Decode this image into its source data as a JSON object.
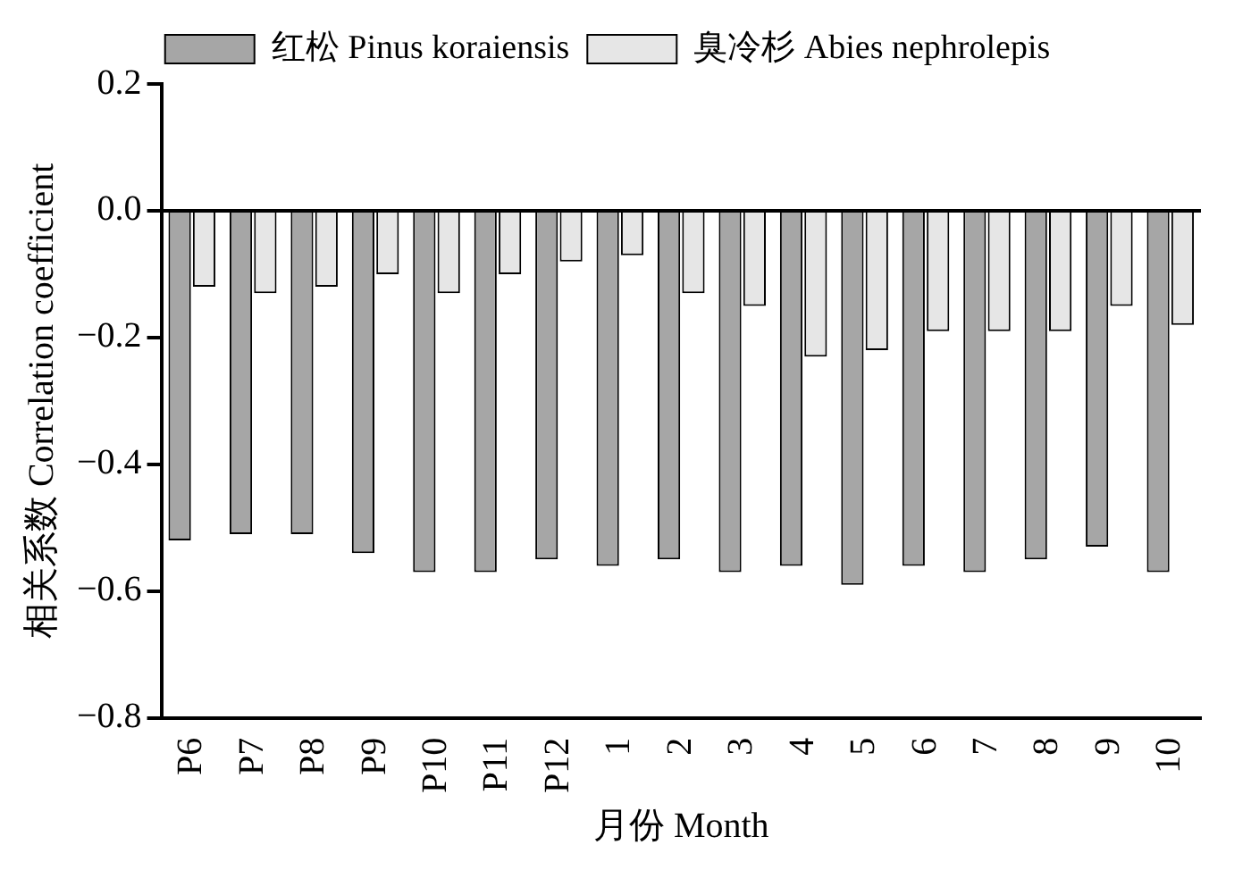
{
  "chart_data": {
    "type": "bar",
    "xlabel": "月份 Month",
    "ylabel": "相关系数 Correlation coefficient",
    "categories": [
      "P6",
      "P7",
      "P8",
      "P9",
      "P10",
      "P11",
      "P12",
      "1",
      "2",
      "3",
      "4",
      "5",
      "6",
      "7",
      "8",
      "9",
      "10"
    ],
    "series": [
      {
        "name": "红松 Pinus koraiensis",
        "color": "#a6a6a6",
        "values": [
          -0.52,
          -0.51,
          -0.51,
          -0.54,
          -0.57,
          -0.57,
          -0.55,
          -0.56,
          -0.55,
          -0.57,
          -0.56,
          -0.59,
          -0.56,
          -0.57,
          -0.55,
          -0.53,
          -0.57
        ]
      },
      {
        "name": "臭冷杉 Abies nephrolepis",
        "color": "#e6e6e6",
        "values": [
          -0.12,
          -0.13,
          -0.12,
          -0.1,
          -0.13,
          -0.1,
          -0.08,
          -0.07,
          -0.13,
          -0.15,
          -0.23,
          -0.22,
          -0.19,
          -0.19,
          -0.19,
          -0.15,
          -0.18
        ]
      }
    ],
    "ylim": [
      -0.8,
      0.2
    ],
    "yticks": [
      {
        "value": -0.8,
        "label": "−0.8"
      },
      {
        "value": -0.6,
        "label": "−0.6"
      },
      {
        "value": -0.4,
        "label": "−0.4"
      },
      {
        "value": -0.2,
        "label": "−0.2"
      },
      {
        "value": 0,
        "label": "0.0"
      },
      {
        "value": 0.2,
        "label": "0.2"
      }
    ],
    "ref_lines": [
      {
        "axis": "y",
        "value": 0,
        "color": "#000000"
      }
    ],
    "grid": false,
    "legend": "top"
  }
}
